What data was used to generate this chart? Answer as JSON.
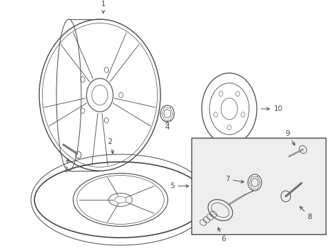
{
  "background_color": "#ffffff",
  "figsize": [
    4.89,
    3.6
  ],
  "dpi": 100,
  "line_color": "#444444",
  "box_fill": "#ebebeb",
  "label_fontsize": 7.5
}
